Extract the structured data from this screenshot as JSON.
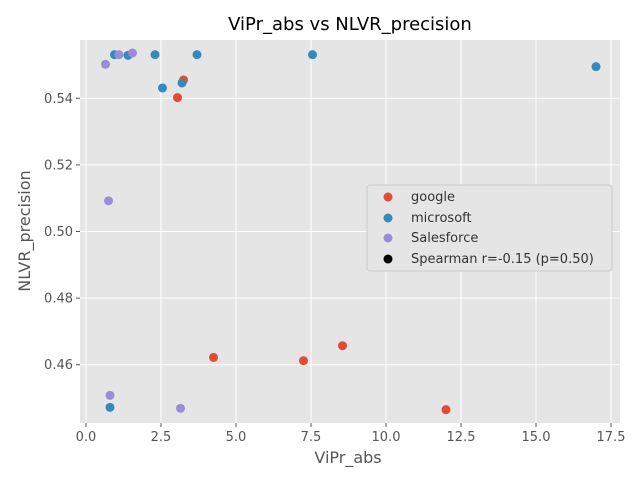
{
  "chart_data": {
    "type": "scatter",
    "title": "ViPr_abs vs NLVR_precision",
    "xlabel": "ViPr_abs",
    "ylabel": "NLVR_precision",
    "xlim": [
      -0.2,
      17.8
    ],
    "ylim": [
      0.4425,
      0.5575
    ],
    "x_ticks": [
      0.0,
      2.5,
      5.0,
      7.5,
      10.0,
      12.5,
      15.0,
      17.5
    ],
    "x_tick_labels": [
      "0.0",
      "2.5",
      "5.0",
      "7.5",
      "10.0",
      "12.5",
      "15.0",
      "17.5"
    ],
    "y_ticks": [
      0.46,
      0.48,
      0.5,
      0.52,
      0.54
    ],
    "y_tick_labels": [
      "0.46",
      "0.48",
      "0.50",
      "0.52",
      "0.54"
    ],
    "grid": true,
    "legend_position": "center-right",
    "series": [
      {
        "name": "google",
        "color": "#E24A33",
        "points": [
          {
            "x": 3.05,
            "y": 0.5402
          },
          {
            "x": 3.25,
            "y": 0.5455
          },
          {
            "x": 4.25,
            "y": 0.4622
          },
          {
            "x": 7.25,
            "y": 0.4612
          },
          {
            "x": 8.55,
            "y": 0.4657
          },
          {
            "x": 12.0,
            "y": 0.4465
          }
        ]
      },
      {
        "name": "microsoft",
        "color": "#348ABD",
        "points": [
          {
            "x": 0.95,
            "y": 0.5531
          },
          {
            "x": 1.4,
            "y": 0.5529
          },
          {
            "x": 2.3,
            "y": 0.5531
          },
          {
            "x": 2.55,
            "y": 0.5431
          },
          {
            "x": 3.2,
            "y": 0.5446
          },
          {
            "x": 3.7,
            "y": 0.5531
          },
          {
            "x": 7.55,
            "y": 0.5531
          },
          {
            "x": 17.0,
            "y": 0.5495
          },
          {
            "x": 0.8,
            "y": 0.4472
          }
        ]
      },
      {
        "name": "Salesforce",
        "color": "#988ED5",
        "points": [
          {
            "x": 0.65,
            "y": 0.5502
          },
          {
            "x": 1.1,
            "y": 0.5531
          },
          {
            "x": 1.55,
            "y": 0.5536
          },
          {
            "x": 0.75,
            "y": 0.5092
          },
          {
            "x": 0.8,
            "y": 0.4508
          },
          {
            "x": 3.15,
            "y": 0.4469
          }
        ]
      }
    ],
    "annotation_entry": {
      "label": "Spearman r=-0.15 (p=0.50)",
      "color": "#000000"
    }
  }
}
